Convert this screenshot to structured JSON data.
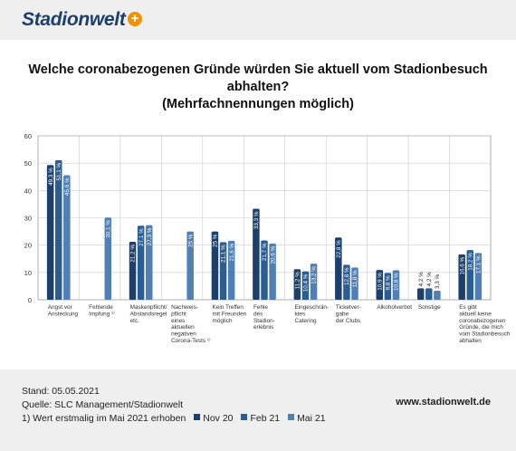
{
  "brand": {
    "name": "Stadionwelt",
    "plus": "+"
  },
  "title_line1": "Welche coronabezogenen Gründe würden Sie aktuell vom Stadionbesuch abhalten?",
  "title_line2": "(Mehrfachnennungen möglich)",
  "footer": {
    "stand": "Stand: 05.05.2021",
    "quelle": "Quelle: SLC Management/Stadionwelt",
    "note": "1) Wert erstmalig im Mai 2021 erhoben",
    "url": "www.stadionwelt.de"
  },
  "colors": {
    "nov20": "#1c3f6e",
    "feb21": "#2a5d94",
    "mai21": "#4f7fb4",
    "axis": "#333333",
    "grid": "#cccccc"
  },
  "chart_data": {
    "type": "bar",
    "title": "Welche coronabezogenen Gründe würden Sie aktuell vom Stadionbesuch abhalten? (Mehrfachnennungen möglich)",
    "ylim": [
      0,
      60
    ],
    "yticks": [
      "0",
      "10",
      "20",
      "30",
      "40",
      "50",
      "60"
    ],
    "grid": true,
    "legend_position": "bottom",
    "categories": [
      [
        "Angst vor",
        "Ansteckung"
      ],
      [
        "Fehlende",
        "Impfung ¹⁾"
      ],
      [
        "Maskenpflicht/",
        "Abstandsregel",
        "etc."
      ],
      [
        "Nachweis-",
        "pflicht",
        "eines",
        "aktuellen",
        "negativen",
        "Corona-Tests ¹⁾"
      ],
      [
        "Kein Treffen",
        "mit Freunden",
        "möglich"
      ],
      [
        "Fehle",
        "des",
        "Stadion-",
        "erlebnis"
      ],
      [
        "Eingeschrän-",
        "ktes",
        "Catering"
      ],
      [
        "Ticketver-",
        "gabe",
        "der Clubs"
      ],
      [
        "Alkoholverbot"
      ],
      [
        "Sonstige"
      ],
      [
        "Es gibt",
        "aktuell keine",
        "coronabezogenen",
        "Gründe, die mich",
        "vom Stadionbesuch",
        "abhalten"
      ]
    ],
    "series": [
      {
        "name": "Nov 20",
        "values": [
          49.3,
          null,
          21.2,
          null,
          25.0,
          33.3,
          11.2,
          22.8,
          10.9,
          4.2,
          16.6
        ],
        "labels": [
          "49,3 %",
          "",
          "21,2 %",
          "",
          "25 %",
          "33,3 %",
          "11,2 %",
          "22,8 %",
          "10,9 %",
          "4,2 %",
          "16,6 %"
        ]
      },
      {
        "name": "Feb 21",
        "values": [
          51.1,
          null,
          27.1,
          null,
          21.1,
          21.7,
          10.4,
          12.8,
          9.8,
          4.2,
          18.2
        ],
        "labels": [
          "51,1 %",
          "",
          "27,1 %",
          "",
          "21,1 %",
          "21,7 %",
          "10,4 %",
          "12,8 %",
          "9,8 %",
          "4,2 %",
          "18,2 %"
        ]
      },
      {
        "name": "Mai 21",
        "values": [
          45.6,
          30.1,
          27.3,
          25.0,
          21.6,
          20.6,
          13.2,
          11.8,
          10.8,
          3.3,
          17.1
        ],
        "labels": [
          "45,6 %",
          "30,1 %",
          "27,3 %",
          "25 %",
          "21,6 %",
          "20,6 %",
          "13,2 %",
          "11,8 %",
          "10,8 %",
          "3,3 %",
          "17,1 %"
        ]
      }
    ]
  }
}
